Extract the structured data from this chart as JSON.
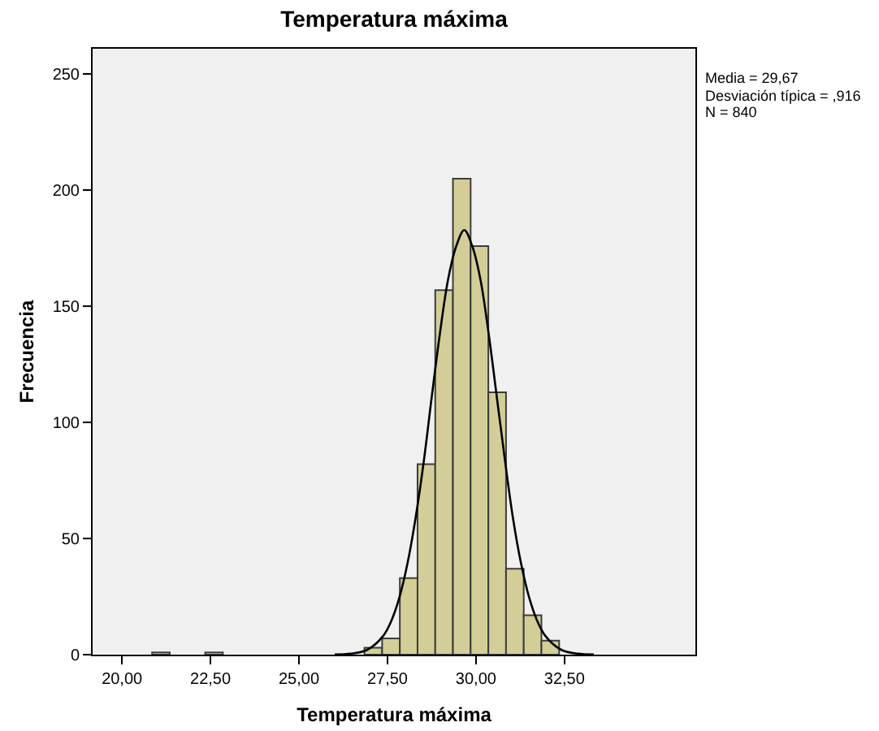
{
  "chart_data": {
    "type": "histogram",
    "title": "Temperatura máxima",
    "xlabel": "Temperatura máxima",
    "ylabel": "Frecuencia",
    "bins": [
      20.85,
      21.35,
      21.85,
      22.35,
      22.85,
      23.35,
      23.85,
      24.35,
      24.85,
      25.35,
      25.85,
      26.35,
      26.85,
      27.35,
      27.85,
      28.35,
      28.85,
      29.35,
      29.85,
      30.35,
      30.85,
      31.35,
      31.85,
      32.35
    ],
    "values": [
      1,
      0,
      0,
      1,
      0,
      0,
      0,
      0,
      0,
      0,
      0,
      0,
      3,
      7,
      33,
      82,
      157,
      205,
      176,
      113,
      37,
      17,
      6
    ],
    "color": "#d3ce97",
    "series": [
      {
        "type": "line",
        "color": "#000000",
        "x": [
          26.01,
          26.46,
          26.92,
          27.38,
          27.61,
          27.84,
          28.07,
          28.3,
          28.53,
          28.75,
          28.98,
          29.21,
          29.44,
          29.67,
          29.9,
          30.13,
          30.36,
          30.59,
          30.82,
          31.04,
          31.27,
          31.5,
          31.73,
          31.96,
          32.42,
          32.88,
          33.33
        ],
        "values": [
          0.1,
          0.4,
          2,
          8.1,
          14.6,
          24.8,
          39.6,
          59.4,
          83.7,
          110.9,
          138.1,
          161.4,
          175.8,
          182.9,
          175.8,
          161.4,
          138.1,
          110.9,
          83.7,
          59.4,
          39.6,
          24.8,
          14.6,
          8.1,
          2,
          0.4,
          0.1
        ]
      }
    ],
    "xlim": [
      19.17,
      36.2
    ],
    "ylim": [
      0,
      261
    ],
    "xticks": [
      {
        "value": 20,
        "label": "20,00"
      },
      {
        "value": 22.5,
        "label": "22,50"
      },
      {
        "value": 25,
        "label": "25,00"
      },
      {
        "value": 27.5,
        "label": "27,50"
      },
      {
        "value": 30,
        "label": "30,00"
      },
      {
        "value": 32.5,
        "label": "32,50"
      }
    ],
    "yticks": [
      0,
      50,
      100,
      150,
      200,
      250
    ],
    "grid": false,
    "annotations": [
      "Media = 29,67",
      "Desviación típica = ,916",
      "N = 840"
    ]
  }
}
